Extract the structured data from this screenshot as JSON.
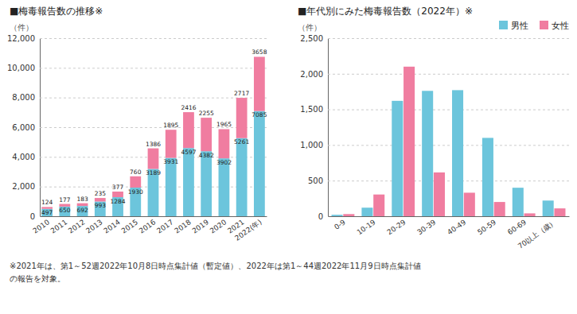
{
  "chart_data": [
    {
      "type": "bar",
      "title": "■梅毒報告数の推移※",
      "ylabel": "（件）",
      "categories": [
        "2010",
        "2011",
        "2012",
        "2013",
        "2014",
        "2015",
        "2016",
        "2017",
        "2018",
        "2019",
        "2020",
        "2021",
        "2022(年)"
      ],
      "series": [
        {
          "name": "男性",
          "color": "#6CC5DC",
          "values": [
            497,
            650,
            692,
            993,
            1284,
            1930,
            3189,
            3931,
            4597,
            4382,
            3902,
            5261,
            7085
          ]
        },
        {
          "name": "女性",
          "color": "#F07DA0",
          "values": [
            124,
            177,
            183,
            235,
            377,
            760,
            1386,
            1895,
            2416,
            2255,
            1965,
            2717,
            3658
          ]
        }
      ],
      "stacked": true,
      "data_labels": true,
      "ylim": [
        0,
        12000
      ],
      "yticks": [
        0,
        {
          "value": 2000,
          "label": "2,000"
        },
        {
          "value": 4000,
          "label": "4,000"
        },
        {
          "value": 6000,
          "label": "6,000"
        },
        {
          "value": 8000,
          "label": "8,000"
        },
        {
          "value": 10000,
          "label": "10,000"
        },
        {
          "value": 12000,
          "label": "12,000"
        }
      ],
      "grid": true,
      "legend": "upper right",
      "annotations": [
        "※2021年は、第1～52週2022年10月8日時点集計値（暫定値）、2022年は第1～44週2022年11月9日時点集計値",
        "の報告を対象。"
      ]
    },
    {
      "type": "bar",
      "title": "■年代別にみた梅毒報告数（2022年）※",
      "ylabel": "（件）",
      "categories": [
        "0-9",
        "10-19",
        "20-29",
        "30-39",
        "40-49",
        "50-59",
        "60-69",
        "70以上（歳）"
      ],
      "series": [
        {
          "color": "#6CC5DC",
          "values": [
            20,
            120,
            1620,
            1760,
            1770,
            1100,
            400,
            220
          ]
        },
        {
          "color": "#F07DA0",
          "values": [
            30,
            305,
            2100,
            615,
            330,
            200,
            40,
            110
          ]
        }
      ],
      "ylim": [
        0,
        2500
      ],
      "yticks": [
        0,
        500,
        {
          "value": 1000,
          "label": "1,000"
        },
        {
          "value": 1500,
          "label": "1,500"
        },
        {
          "value": 2000,
          "label": "2,000"
        },
        {
          "value": 2500,
          "label": "2,500"
        }
      ],
      "grid": true
    }
  ]
}
